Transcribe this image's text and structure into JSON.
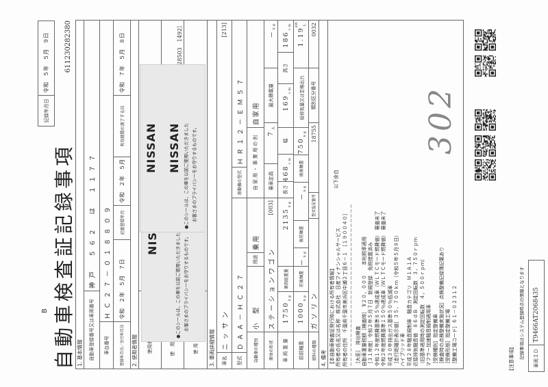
{
  "header": {
    "form_code": "B",
    "title": "自動車検査証記録事項",
    "record_date_label": "記録年月日",
    "record_date": "令和　５年　５月　９日",
    "document_number": "611230282380"
  },
  "section1": {
    "heading": "1. 基本情報",
    "registration_label": "自動車登録番号又は車両番号",
    "registration_value": "神戸　５６２　は　１１７７",
    "chassis_label": "車台番号",
    "chassis_value": "ＨＣ２７－０１８８０９",
    "reg_date_label": "登録年月日／交付年月日",
    "reg_date_value": "令和　２年　５月　７日",
    "first_reg_label": "初度登録年月",
    "first_reg_value": "令和　２年　５月",
    "expiry_label": "有効期間の満了する日",
    "expiry_value": "令和　７年　５月　８日"
  },
  "section2": {
    "heading": "2. 使用者情報",
    "name_label": "使用者の氏名又は名称",
    "address_label": "使　用　者　の　住　所",
    "address_code": "28503　1492］",
    "base_label": "使 用 の 本 拠 の 位 置"
  },
  "sticker": {
    "brand": "NISSAN",
    "text_line1": "●このシールは、この車を以前ご使用いただきました",
    "text_line2": "お客さまのプライバシーをお守りするものです。"
  },
  "section3": {
    "heading": "3. 車両詳細情報",
    "make_label": "車名",
    "make_value": "ニッサン",
    "make_code": "[213]",
    "model_label": "型式",
    "model_value": "ＤＡＡ－ＨＣ２７",
    "engine_label": "原動機の型式",
    "engine_value": "ＨＲ１２－ＥＭ５７",
    "class_label": "自動車の種別",
    "class_value": "小　型",
    "use_label": "用途",
    "use_value": "乗用",
    "private_label": "自 家 用 ・ 事 業 用 の 別",
    "private_value": "自家用",
    "body_label": "車体の形状",
    "body_value": "ステーションワゴン",
    "body_code": "[003]",
    "capacity_label": "乗車定員",
    "capacity_value": "7",
    "capacity_unit": "人",
    "max_load_label": "最大積載量",
    "max_load_value": "－",
    "max_load_unit": "kg",
    "weight_label": "車 両 重 量",
    "weight_value": "1750",
    "weight_unit": "kg",
    "gross_label": "車両総重量",
    "gross_value": "2135",
    "gross_unit": "kg",
    "length_label": "長さ",
    "length_value": "468",
    "length_unit": "cm",
    "width_label": "幅",
    "width_value": "169",
    "width_unit": "cm",
    "height_label": "高さ",
    "height_value": "186",
    "height_unit": "cm",
    "ff_axle_label": "前前軸重",
    "ff_axle_value": "1000",
    "ff_axle_unit": "kg",
    "fr_axle_label": "前後軸重",
    "fr_axle_value": "－",
    "fr_axle_unit": "kg",
    "rf_axle_label": "後前軸重",
    "rf_axle_value": "－",
    "rf_axle_unit": "kg",
    "rr_axle_label": "後後軸重",
    "rr_axle_value": "750",
    "rr_axle_unit": "kg",
    "displacement_label": "総排気量又は定格出力",
    "displacement_value": "1.19",
    "displacement_unit": "L",
    "displacement_unit2": "kW",
    "fuel_label": "燃料の種類",
    "fuel_value": "ガソリン",
    "type_no_label": "型式指定番号",
    "type_no_value": "18755",
    "category_no_label": "類別区分番号",
    "category_no_value": "0032"
  },
  "section4": {
    "heading": "4. 備考",
    "blank_note": "以下余白",
    "handwritten": "302",
    "notes": [
      "【本自動車検査証発行時における所有者情報】",
      "所有者の氏名又は名称　株式会社　日産フィナンシャルサービス",
      "所有者の住所　千葉県千葉市美浜区中瀬２丁目６－１　［１９００４０］",
      "－－－－－－－－－－－－－－－－－－－－－－－－－－－－－－－－－－",
      "［大臣］　排出検査",
      "自動車重量税額［検査時］　¥２０，０００　　本則税率適用",
      "［３１年度］令和２年５月７日　新規登録　免税措置済み",
      "令和１２年度燃費基準８５％達成車（ＷＬＴＣモード燃費値）　審査未了",
      "令和２年度燃費基準１５０％達成車（ＷＬＴＣモード燃費値）　審査未了",
      "平成３０年排出ガス基準５０％低減車",
      "［走行距離計表示値］３５，７００ｋｍ（令和５年５月９日）",
      "ハイブリッド車",
      "平成２８年騒音規制車　騒音カテゴリ　Ｍ１Ａ１Ａ",
      "近接排気騒音値　８６ｄＢ　測定回転数　３，７５０ｒｐｍ",
      "（旧基準適用時の測定回転数　４，５００ｒｐｍ）",
      "マフラー加速騒音規制適用車",
      "［受検種別］指定整備車",
      "［検査時の点検整備実施状況］点検整備記録簿記載あり",
      "［受検形態］指定整備工場",
      "［整備工場コード］６１－０２３１２"
    ]
  },
  "footer": {
    "notice_heading": "【注意事項】",
    "notice_text": "記録事項はシステム登録時点の情報となります",
    "vehicle_id_label": "車両ＩＤ",
    "vehicle_id_value": "T9466AT2068435"
  },
  "qr_codes": [
    "qr-code-1",
    "qr-code-2",
    "qr-code-3",
    "qr-code-4",
    "qr-code-5"
  ]
}
